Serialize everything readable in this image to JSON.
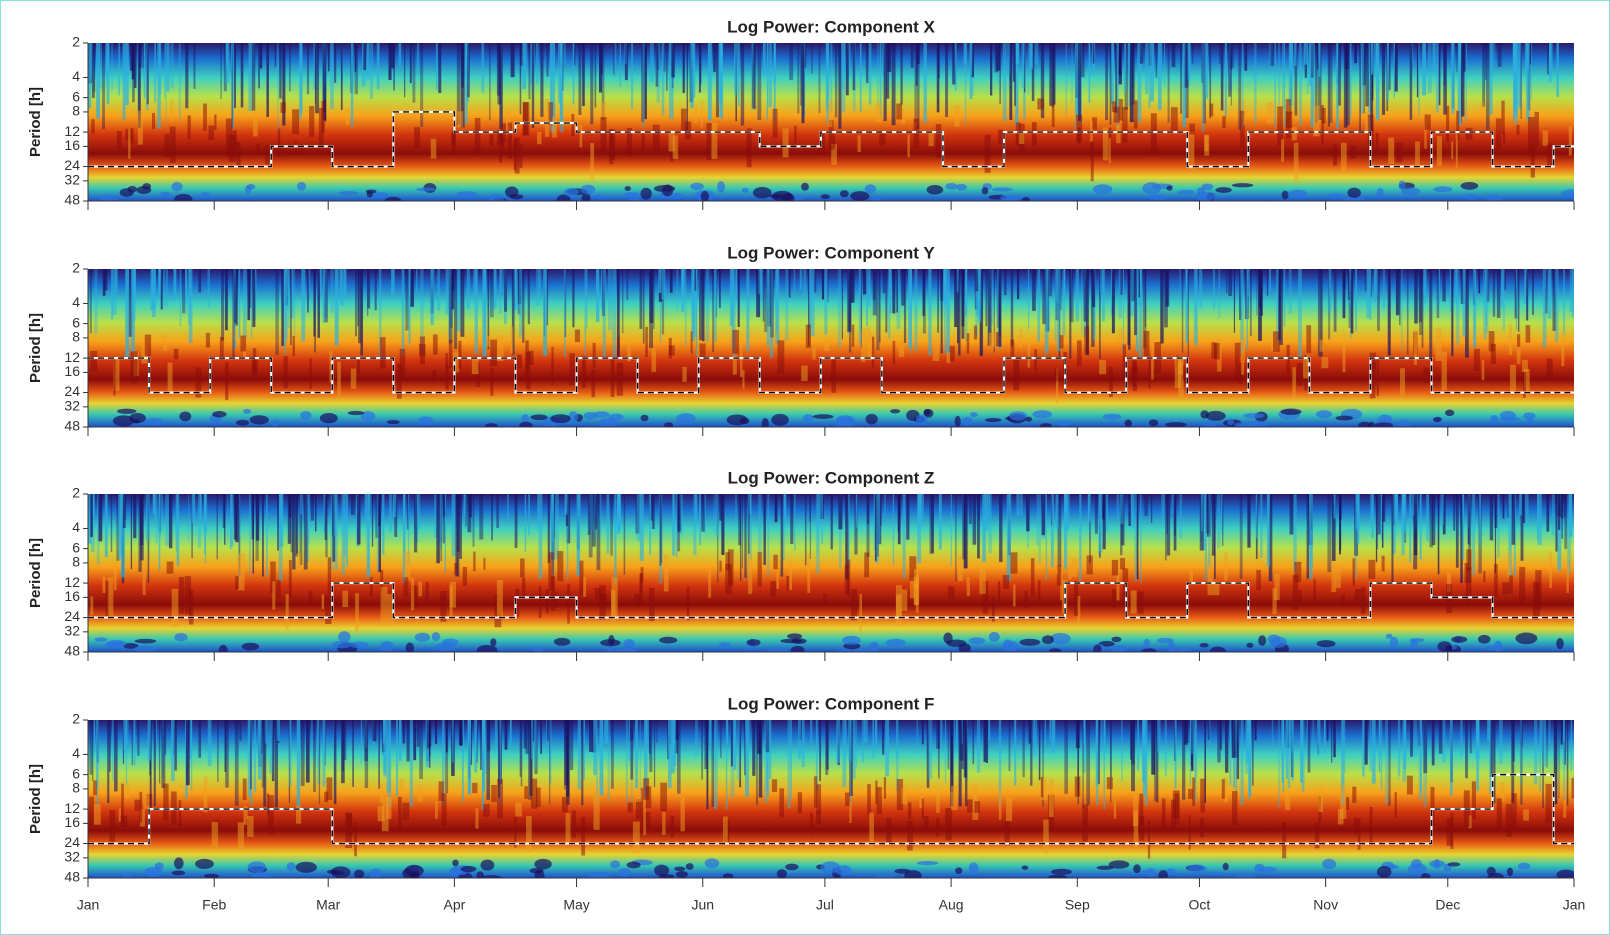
{
  "chart_data": [
    {
      "type": "line",
      "title": "Log Power: Component X",
      "ylabel": "Period [h]",
      "ylim": [
        2,
        48
      ],
      "yticks": [
        2,
        4,
        6,
        8,
        12,
        16,
        24,
        32,
        48
      ],
      "y_log": true,
      "y_inverted": true,
      "xlim": [
        0,
        365
      ],
      "xticks": [
        0,
        31,
        59,
        90,
        120,
        151,
        181,
        212,
        243,
        273,
        304,
        334,
        365
      ],
      "x": [
        0,
        15,
        30,
        45,
        60,
        75,
        90,
        105,
        120,
        135,
        150,
        165,
        180,
        195,
        210,
        225,
        240,
        255,
        270,
        285,
        300,
        315,
        330,
        345,
        360
      ],
      "values": [
        24,
        24,
        24,
        16,
        24,
        8,
        12,
        10,
        12,
        12,
        12,
        16,
        12,
        12,
        24,
        12,
        12,
        12,
        24,
        12,
        12,
        24,
        12,
        24,
        16
      ]
    },
    {
      "type": "line",
      "title": "Log Power: Component Y",
      "ylabel": "Period [h]",
      "ylim": [
        2,
        48
      ],
      "yticks": [
        2,
        4,
        6,
        8,
        12,
        16,
        24,
        32,
        48
      ],
      "y_log": true,
      "y_inverted": true,
      "xlim": [
        0,
        365
      ],
      "xticks": [
        0,
        31,
        59,
        90,
        120,
        151,
        181,
        212,
        243,
        273,
        304,
        334,
        365
      ],
      "x": [
        0,
        15,
        30,
        45,
        60,
        75,
        90,
        105,
        120,
        135,
        150,
        165,
        180,
        195,
        210,
        225,
        240,
        255,
        270,
        285,
        300,
        315,
        330,
        345,
        360
      ],
      "values": [
        12,
        24,
        12,
        24,
        12,
        24,
        12,
        24,
        12,
        24,
        12,
        24,
        12,
        24,
        24,
        12,
        24,
        12,
        24,
        12,
        24,
        12,
        24,
        24,
        24
      ]
    },
    {
      "type": "line",
      "title": "Log Power: Component Z",
      "ylabel": "Period [h]",
      "ylim": [
        2,
        48
      ],
      "yticks": [
        2,
        4,
        6,
        8,
        12,
        16,
        24,
        32,
        48
      ],
      "y_log": true,
      "y_inverted": true,
      "xlim": [
        0,
        365
      ],
      "xticks": [
        0,
        31,
        59,
        90,
        120,
        151,
        181,
        212,
        243,
        273,
        304,
        334,
        365
      ],
      "x": [
        0,
        15,
        30,
        45,
        60,
        75,
        90,
        105,
        120,
        135,
        150,
        165,
        180,
        195,
        210,
        225,
        240,
        255,
        270,
        285,
        300,
        315,
        330,
        345,
        360
      ],
      "values": [
        24,
        24,
        24,
        24,
        12,
        24,
        24,
        16,
        24,
        24,
        24,
        24,
        24,
        24,
        24,
        24,
        12,
        24,
        12,
        24,
        24,
        12,
        16,
        24,
        24
      ]
    },
    {
      "type": "line",
      "title": "Log Power: Component F",
      "ylabel": "Period [h]",
      "ylim": [
        2,
        48
      ],
      "yticks": [
        2,
        4,
        6,
        8,
        12,
        16,
        24,
        32,
        48
      ],
      "y_log": true,
      "y_inverted": true,
      "xlim": [
        0,
        365
      ],
      "xticks": [
        {
          "value": 0,
          "label": "Jan"
        },
        {
          "value": 31,
          "label": "Feb"
        },
        {
          "value": 59,
          "label": "Mar"
        },
        {
          "value": 90,
          "label": "Apr"
        },
        {
          "value": 120,
          "label": "May"
        },
        {
          "value": 151,
          "label": "Jun"
        },
        {
          "value": 181,
          "label": "Jul"
        },
        {
          "value": 212,
          "label": "Aug"
        },
        {
          "value": 243,
          "label": "Sep"
        },
        {
          "value": 273,
          "label": "Oct"
        },
        {
          "value": 304,
          "label": "Nov"
        },
        {
          "value": 334,
          "label": "Dec"
        },
        {
          "value": 365,
          "label": "Jan"
        }
      ],
      "x": [
        0,
        15,
        30,
        45,
        60,
        75,
        90,
        105,
        120,
        135,
        150,
        165,
        180,
        195,
        210,
        225,
        240,
        255,
        270,
        285,
        300,
        315,
        330,
        345,
        360
      ],
      "values": [
        24,
        12,
        12,
        12,
        24,
        24,
        24,
        24,
        24,
        24,
        24,
        24,
        24,
        24,
        24,
        24,
        24,
        24,
        24,
        24,
        24,
        24,
        12,
        6,
        24
      ]
    }
  ]
}
